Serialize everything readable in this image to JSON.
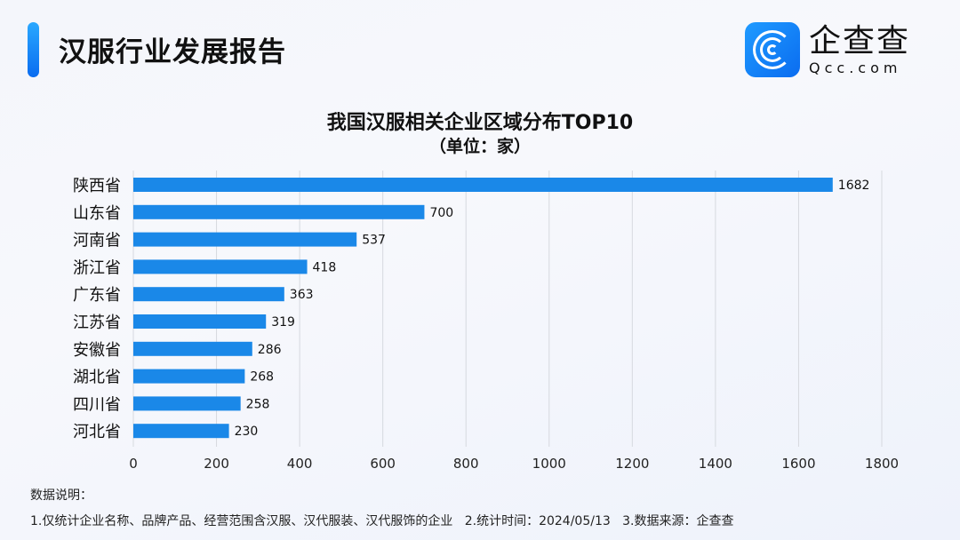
{
  "header": {
    "title": "汉服行业发展报告"
  },
  "logo": {
    "name_cn": "企查查",
    "name_en": "Qcc.com"
  },
  "colors": {
    "bar": "#1a88e8",
    "grid": "#d6d9df"
  },
  "chart_data": {
    "type": "bar",
    "orientation": "horizontal",
    "title": "我国汉服相关企业区域分布TOP10",
    "subtitle": "（单位：家）",
    "categories": [
      "陕西省",
      "山东省",
      "河南省",
      "浙江省",
      "广东省",
      "江苏省",
      "安徽省",
      "湖北省",
      "四川省",
      "河北省"
    ],
    "values": [
      1682,
      700,
      537,
      418,
      363,
      319,
      286,
      268,
      258,
      230
    ],
    "xlim": [
      0,
      1800
    ],
    "xticks": [
      "0",
      "200",
      "400",
      "600",
      "800",
      "1000",
      "1200",
      "1400",
      "1600",
      "1800"
    ],
    "grid": true
  },
  "notes": {
    "heading": "数据说明：",
    "line": "1.仅统计企业名称、品牌产品、经营范围含汉服、汉代服装、汉代服饰的企业   2.统计时间：2024/05/13   3.数据来源：企查查"
  }
}
